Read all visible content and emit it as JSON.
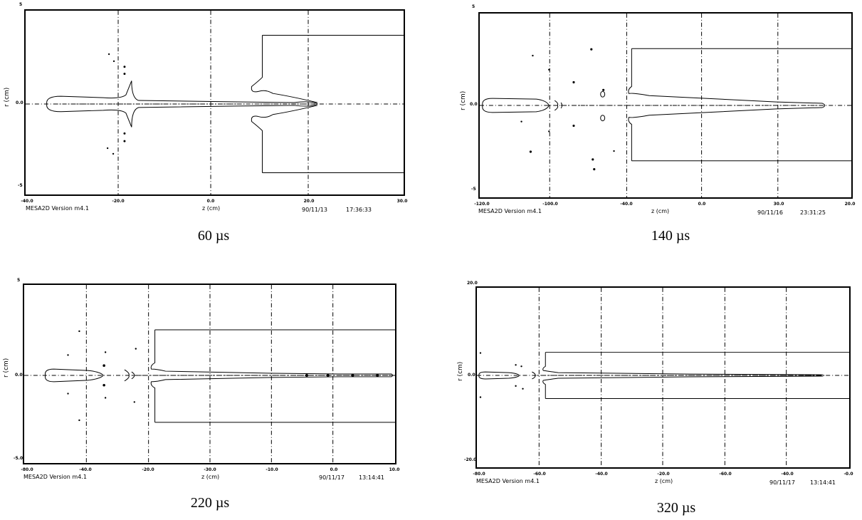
{
  "panels": [
    {
      "id": "p60",
      "caption": "60 µs",
      "xlabel": "z (cm)",
      "ylabel": "r (cm)",
      "version": "MESA2D Version m4.1",
      "date": "90/11/13",
      "time": "17:36:33",
      "xticks": [
        "-40.0",
        "-20.0",
        "0.0",
        "20.0",
        "30.0"
      ],
      "yticks": [
        "5",
        "0.0",
        "-5"
      ],
      "xlim": [
        -40,
        30
      ],
      "target_start": 13
    },
    {
      "id": "p140",
      "caption": "140 µs",
      "xlabel": "z (cm)",
      "ylabel": "r (cm)",
      "version": "MESA2D Version m4.1",
      "date": "90/11/16",
      "time": "23:31:25",
      "xticks": [
        "-120.0",
        "-100.0",
        "-40.0",
        "0.0",
        "30.0",
        "20.0"
      ],
      "yticks": [
        "5",
        "0.0",
        "-5"
      ],
      "xlim": [
        -120,
        20
      ],
      "target_start": -40
    },
    {
      "id": "p220",
      "caption": "220 µs",
      "xlabel": "z (cm)",
      "ylabel": "r (cm)",
      "version": "MESA2D Version m4.1",
      "date": "90/11/17",
      "time": "13:14:41",
      "xticks": [
        "-80.0",
        "-40.0",
        "-20.0",
        "-30.0",
        "-10.0",
        "0.0",
        "10.0"
      ],
      "yticks": [
        "5",
        "0.0",
        "-5.0"
      ],
      "xlim": [
        -80,
        10
      ],
      "target_start": -20
    },
    {
      "id": "p320",
      "caption": "320 µs",
      "xlabel": "z (cm)",
      "ylabel": "r (cm)",
      "version": "MESA2D Version m4.1",
      "date": "90/11/17",
      "time": "13:14:41",
      "xticks": [
        "-80.0",
        "-60.0",
        "-40.0",
        "-20.0",
        "-60.0",
        "-40.0",
        "-0.0"
      ],
      "yticks": [
        "20.0",
        "0.0",
        "-20.0"
      ],
      "xlim": [
        -80,
        0
      ],
      "target_start": -60
    }
  ]
}
